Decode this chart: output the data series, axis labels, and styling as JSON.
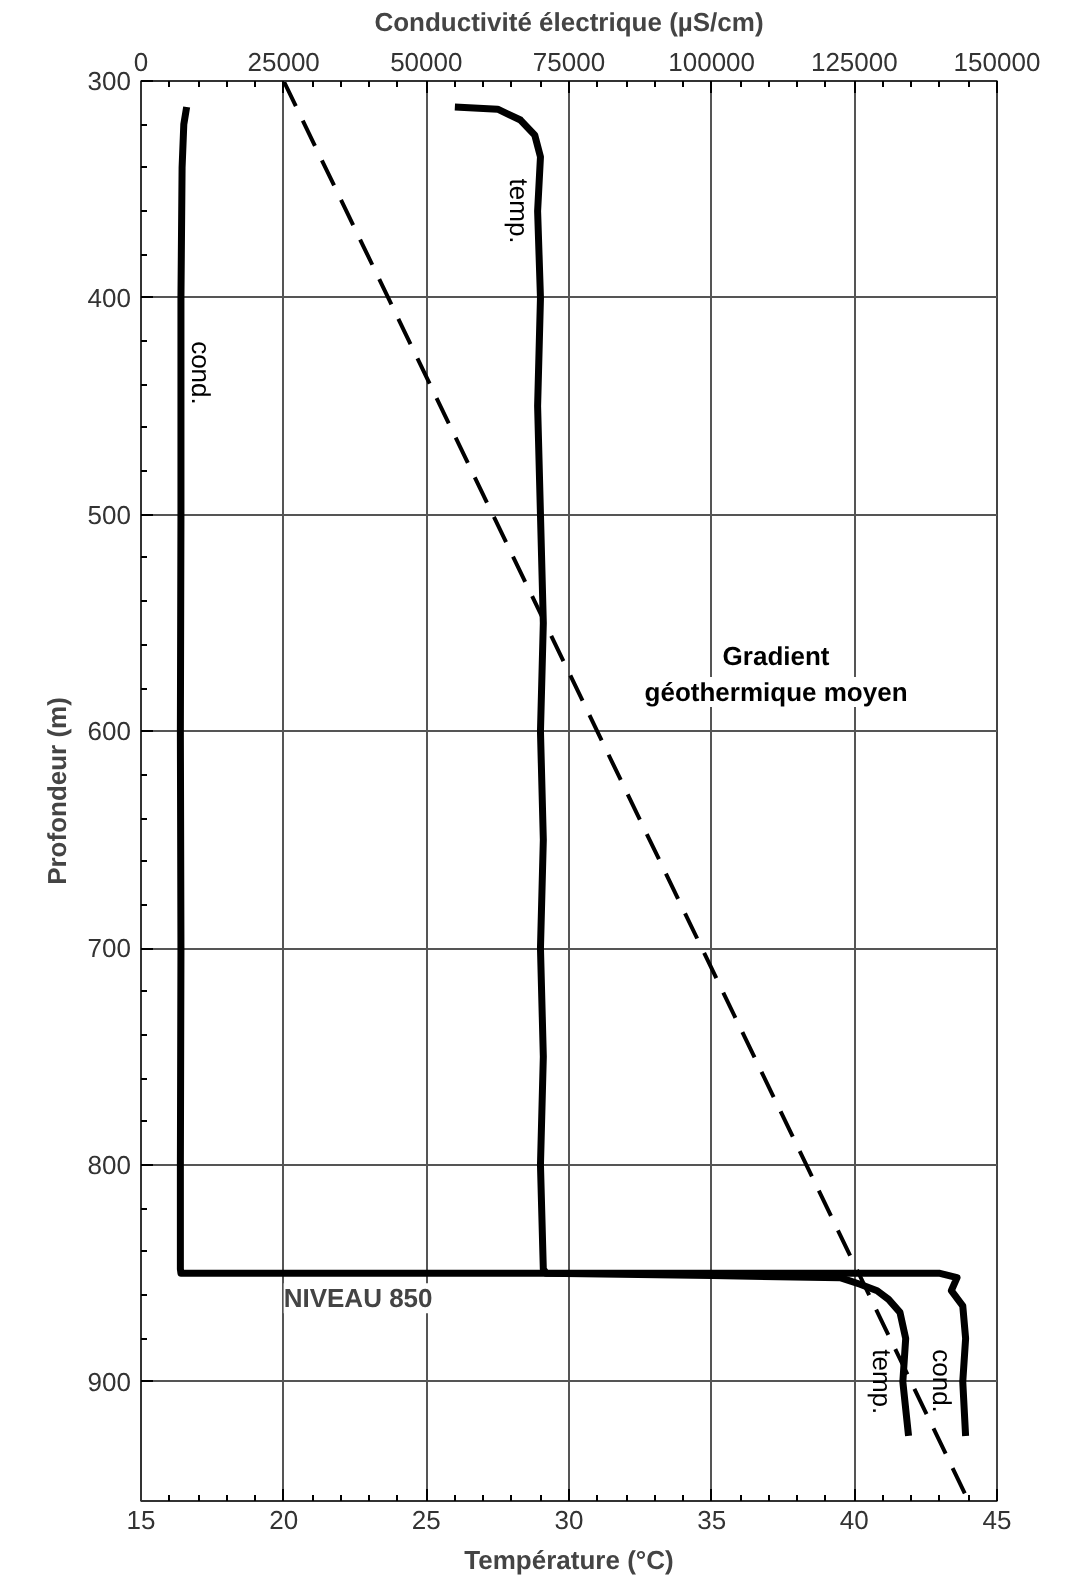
{
  "chart_data": {
    "type": "line",
    "xlabel": "Température (°C)",
    "x2label": "Conductivité électrique (µS/cm)",
    "ylabel": "Profondeur (m)",
    "xlim": [
      15,
      45
    ],
    "xticks": [
      15,
      20,
      25,
      30,
      35,
      40,
      45
    ],
    "x2lim": [
      0,
      150000
    ],
    "x2ticks": [
      0,
      25000,
      50000,
      75000,
      100000,
      125000,
      150000
    ],
    "ylim": [
      955,
      300
    ],
    "yticks": [
      300,
      400,
      500,
      600,
      700,
      800,
      900
    ],
    "grid": true,
    "marker": "none",
    "series": [
      {
        "name": "cond.",
        "axis": "x2",
        "color": "#000000",
        "line_style": "solid",
        "x": [
          8000,
          7500,
          7200,
          7000,
          7000,
          6900,
          7000,
          6900,
          6900,
          7000,
          140000,
          143000,
          142000,
          144000,
          144500,
          144000,
          144500
        ],
        "values": [
          312,
          320,
          340,
          400,
          500,
          600,
          700,
          800,
          848,
          850,
          850,
          852,
          858,
          865,
          880,
          900,
          925
        ]
      },
      {
        "name": "temp.",
        "color": "#000000",
        "line_style": "solid",
        "x": [
          26.0,
          27.5,
          28.3,
          28.8,
          29.0,
          28.9,
          29.0,
          28.9,
          29.0,
          29.1,
          29.0,
          29.1,
          29.0,
          29.1,
          29.0,
          29.1,
          29.2,
          35,
          39.5,
          40.2,
          40.8,
          41.2,
          41.6,
          41.8,
          41.7,
          41.9
        ],
        "values": [
          312,
          313,
          318,
          325,
          335,
          360,
          400,
          450,
          500,
          550,
          600,
          650,
          700,
          750,
          800,
          848,
          850,
          851,
          852,
          855,
          858,
          862,
          868,
          880,
          900,
          925
        ]
      },
      {
        "name": "Gradient géothermique moyen",
        "color": "#000000",
        "line_style": "dashed",
        "x": [
          20,
          44
        ],
        "values": [
          300,
          955
        ]
      }
    ],
    "annotations": [
      {
        "text": "NIVEAU 850",
        "x": 20,
        "y": 850
      }
    ]
  }
}
